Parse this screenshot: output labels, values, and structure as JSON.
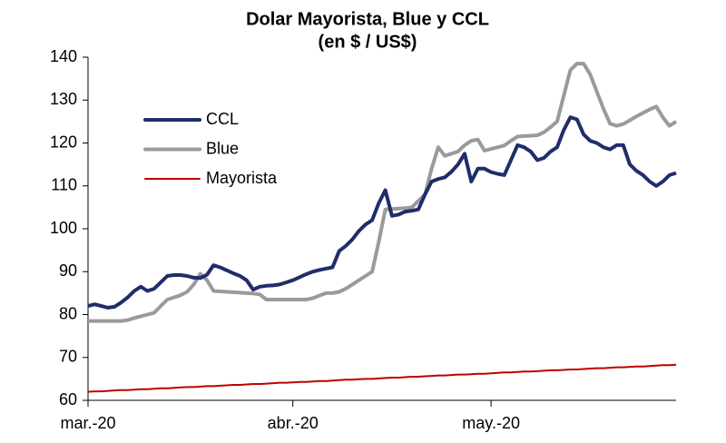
{
  "chart_data": {
    "type": "line",
    "title": "Dolar Mayorista, Blue y CCL",
    "subtitle": "(en $ / US$)",
    "categories": [
      "mar.-20",
      null,
      null,
      null,
      null,
      null,
      null,
      null,
      null,
      null,
      null,
      null,
      null,
      null,
      null,
      null,
      null,
      null,
      null,
      null,
      null,
      null,
      null,
      null,
      null,
      null,
      null,
      null,
      null,
      null,
      null,
      "abr.-20",
      null,
      null,
      null,
      null,
      null,
      null,
      null,
      null,
      null,
      null,
      null,
      null,
      null,
      null,
      null,
      null,
      null,
      null,
      null,
      null,
      null,
      null,
      null,
      null,
      null,
      null,
      null,
      null,
      null,
      "may.-20",
      null,
      null,
      null,
      null,
      null,
      null,
      null,
      null,
      null,
      null,
      null,
      null,
      null,
      null,
      null,
      null,
      null,
      null,
      null,
      null,
      null,
      null,
      null,
      null,
      null,
      null,
      null,
      null
    ],
    "series": [
      {
        "name": "CCL",
        "color": "#1f2d6b",
        "values": [
          82,
          82.4,
          82,
          81.6,
          81.8,
          82.8,
          84,
          85.5,
          86.5,
          85.5,
          86,
          87.5,
          89,
          89.2,
          89.2,
          89,
          88.6,
          88.5,
          89.3,
          91.5,
          91,
          90.3,
          89.6,
          89,
          88,
          85.8,
          86.5,
          86.7,
          86.8,
          87,
          87.5,
          88,
          88.7,
          89.4,
          90,
          90.4,
          90.7,
          91,
          94.8,
          96,
          97.5,
          99.5,
          101,
          102,
          106,
          109,
          103,
          103.3,
          104,
          104.2,
          104.5,
          108,
          111,
          111.6,
          112,
          113.3,
          115,
          117.5,
          111,
          114,
          114,
          113.2,
          112.8,
          112.5,
          116,
          119.5,
          119,
          118,
          116,
          116.5,
          118,
          119,
          123,
          126,
          125.5,
          122,
          120.5,
          120,
          119,
          118.5,
          119.5,
          119.5,
          115,
          113.5,
          112.5,
          111,
          110,
          111,
          112.5,
          113
        ]
      },
      {
        "name": "Blue",
        "color": "#9a9a9a",
        "values": [
          78.5,
          78.5,
          78.5,
          78.5,
          78.5,
          78.5,
          78.7,
          79.2,
          79.6,
          80,
          80.4,
          82,
          83.5,
          84,
          84.5,
          85.3,
          87,
          89.5,
          88,
          85.5,
          85.4,
          85.3,
          85.2,
          85.1,
          85,
          84.9,
          84.7,
          83.5,
          83.5,
          83.5,
          83.5,
          83.5,
          83.5,
          83.5,
          83.8,
          84.4,
          85,
          85,
          85.3,
          86,
          87,
          88,
          89,
          90,
          97,
          104.5,
          104.6,
          104.7,
          104.8,
          105,
          106.5,
          108,
          114,
          119,
          117,
          117.5,
          118,
          119.5,
          120.5,
          120.8,
          118.2,
          118.6,
          119,
          119.4,
          120.5,
          121.5,
          121.6,
          121.7,
          121.8,
          122.5,
          123.7,
          125,
          131,
          137,
          138.5,
          138.5,
          136,
          132,
          128,
          124.5,
          124,
          124.4,
          125.3,
          126.2,
          127,
          127.8,
          128.5,
          126,
          124,
          125
        ]
      },
      {
        "name": "Mayorista",
        "color": "#c00000",
        "values": [
          62.0,
          62.1,
          62.1,
          62.2,
          62.3,
          62.4,
          62.4,
          62.5,
          62.6,
          62.6,
          62.7,
          62.8,
          62.8,
          62.9,
          63.0,
          63.1,
          63.1,
          63.2,
          63.3,
          63.3,
          63.4,
          63.5,
          63.6,
          63.6,
          63.7,
          63.8,
          63.8,
          63.9,
          64.0,
          64.1,
          64.1,
          64.2,
          64.3,
          64.3,
          64.4,
          64.5,
          64.5,
          64.6,
          64.7,
          64.8,
          64.8,
          64.9,
          65.0,
          65.0,
          65.1,
          65.2,
          65.3,
          65.3,
          65.4,
          65.5,
          65.5,
          65.6,
          65.7,
          65.8,
          65.8,
          65.9,
          66.0,
          66.0,
          66.1,
          66.2,
          66.2,
          66.3,
          66.4,
          66.5,
          66.5,
          66.6,
          66.7,
          66.7,
          66.8,
          66.9,
          67.0,
          67.0,
          67.1,
          67.2,
          67.2,
          67.3,
          67.4,
          67.5,
          67.5,
          67.6,
          67.7,
          67.7,
          67.8,
          67.9,
          67.9,
          68.0,
          68.1,
          68.2,
          68.2,
          68.3
        ]
      }
    ],
    "ylim": [
      60,
      140
    ],
    "yticks": [
      60,
      70,
      80,
      90,
      100,
      110,
      120,
      130,
      140
    ],
    "grid": false,
    "legend": "upper left"
  }
}
